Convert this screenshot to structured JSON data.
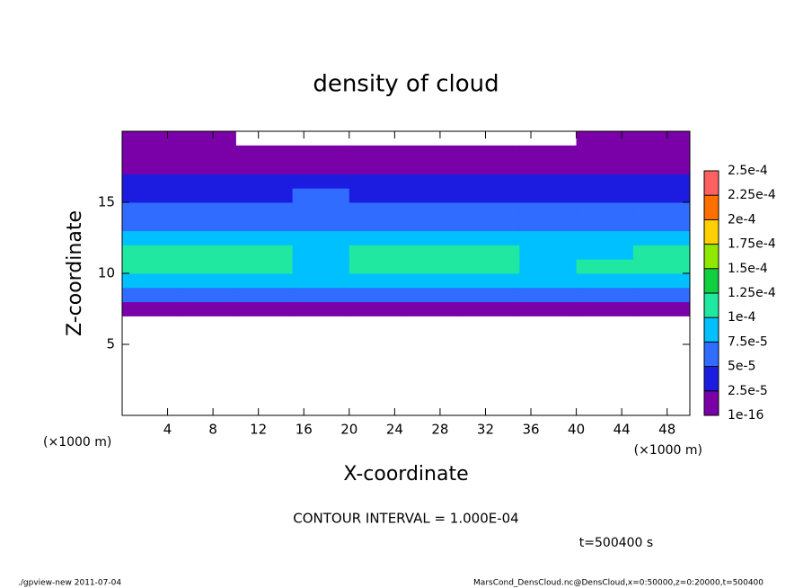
{
  "chart_data": {
    "type": "heatmap",
    "title": "density of cloud",
    "x_label": "X-coordinate",
    "y_label": "Z-coordinate",
    "x_unit": "(×1000 m)",
    "y_unit": "(×1000 m)",
    "contour_note": "CONTOUR INTERVAL = 1.000E-04",
    "time_note": "t=500400 s",
    "footer_left": "./gpview-new  2011-07-04",
    "footer_right": "MarsCond_DensCloud.nc@DensCloud,x=0:50000,z=0:20000,t=500400",
    "x": [
      2.5,
      7.5,
      12.5,
      17.5,
      22.5,
      27.5,
      32.5,
      37.5,
      42.5,
      47.5
    ],
    "y": [
      7.5,
      8.5,
      9.5,
      10.5,
      11.5,
      12.5,
      13.5,
      14.5,
      15.5,
      16.5,
      17.5,
      18.5,
      19.5
    ],
    "values": [
      [
        2e-05,
        2e-05,
        2e-05,
        2e-05,
        2e-05,
        2e-05,
        2e-05,
        2e-05,
        2e-05,
        2e-05
      ],
      [
        5.5e-05,
        5.5e-05,
        5e-05,
        5.5e-05,
        5.5e-05,
        5.5e-05,
        5e-05,
        5.5e-05,
        5.5e-05,
        5.5e-05
      ],
      [
        8.5e-05,
        8.5e-05,
        8e-05,
        8.5e-05,
        8.5e-05,
        8.5e-05,
        8e-05,
        8e-05,
        8.5e-05,
        8.5e-05
      ],
      [
        0.000105,
        0.00011,
        0.000102,
        9.5e-05,
        0.000102,
        0.000105,
        0.000102,
        9e-05,
        0.000102,
        0.000105
      ],
      [
        0.000102,
        0.000105,
        0.0001,
        9e-05,
        0.000102,
        0.000105,
        0.000102,
        8.5e-05,
        9e-05,
        0.0001
      ],
      [
        8e-05,
        8e-05,
        7.5e-05,
        8e-05,
        8.5e-05,
        8.5e-05,
        8e-05,
        7.5e-05,
        7.5e-05,
        7.5e-05
      ],
      [
        6.5e-05,
        6.5e-05,
        6.5e-05,
        7e-05,
        7e-05,
        6.5e-05,
        6.5e-05,
        6.5e-05,
        6.5e-05,
        6e-05
      ],
      [
        5e-05,
        5e-05,
        5.5e-05,
        6.5e-05,
        6e-05,
        5.5e-05,
        5e-05,
        5e-05,
        5e-05,
        5e-05
      ],
      [
        4e-05,
        4e-05,
        4e-05,
        5.5e-05,
        4.5e-05,
        4e-05,
        4e-05,
        4e-05,
        4e-05,
        4e-05
      ],
      [
        3e-05,
        3e-05,
        3e-05,
        3.5e-05,
        3e-05,
        3e-05,
        3e-05,
        3e-05,
        3e-05,
        3e-05
      ],
      [
        2e-05,
        2e-05,
        2e-05,
        2e-05,
        2e-05,
        2e-05,
        2e-05,
        2e-05,
        2e-05,
        2e-05
      ],
      [
        6e-06,
        6e-06,
        6e-06,
        5e-06,
        5e-06,
        5e-06,
        5e-06,
        6e-06,
        6e-06,
        6e-06
      ],
      [
        5e-06,
        5e-06,
        null,
        null,
        null,
        null,
        null,
        null,
        5e-06,
        5e-06
      ]
    ],
    "xlim": [
      0,
      50
    ],
    "xticks": [
      4,
      8,
      12,
      16,
      20,
      24,
      28,
      32,
      36,
      40,
      44,
      48
    ],
    "ylim": [
      0,
      20
    ],
    "yticks": [
      5,
      10,
      15
    ],
    "levels": [
      1e-16,
      2.5e-05,
      5e-05,
      7.5e-05,
      0.0001,
      0.000125,
      0.00015,
      0.000175,
      0.0002,
      0.000225,
      0.00025
    ],
    "level_labels": [
      "1e-16",
      "2.5e-5",
      "5e-5",
      "7.5e-5",
      "1e-4",
      "1.25e-4",
      "1.5e-4",
      "1.75e-4",
      "2e-4",
      "2.25e-4",
      "2.5e-4"
    ],
    "colors": [
      "#7a00a8",
      "#1c1ce0",
      "#2f6cff",
      "#00c0ff",
      "#20e8a0",
      "#10d040",
      "#90e800",
      "#ffd000",
      "#ff7000",
      "#ff6060"
    ]
  }
}
